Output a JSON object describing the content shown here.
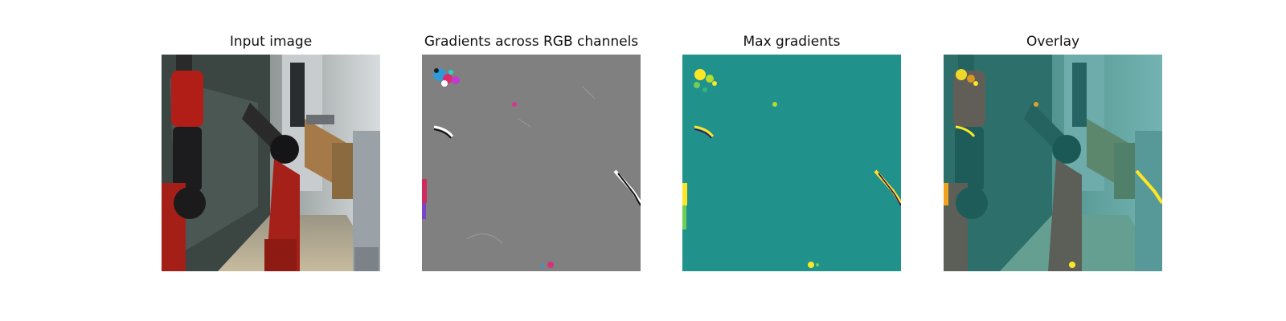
{
  "figure": {
    "panels": [
      {
        "id": "input",
        "title": "Input image"
      },
      {
        "id": "gradients",
        "title": "Gradients across RGB channels"
      },
      {
        "id": "max-gradients",
        "title": "Max gradients"
      },
      {
        "id": "overlay",
        "title": "Overlay"
      }
    ],
    "colors": {
      "gradient_background": "#808080",
      "max_gradient_background": "#21918c",
      "highlight_yellow": "#fde725",
      "overlay_tint": "#3e9d9b",
      "robot_red": "#b3261e"
    }
  }
}
